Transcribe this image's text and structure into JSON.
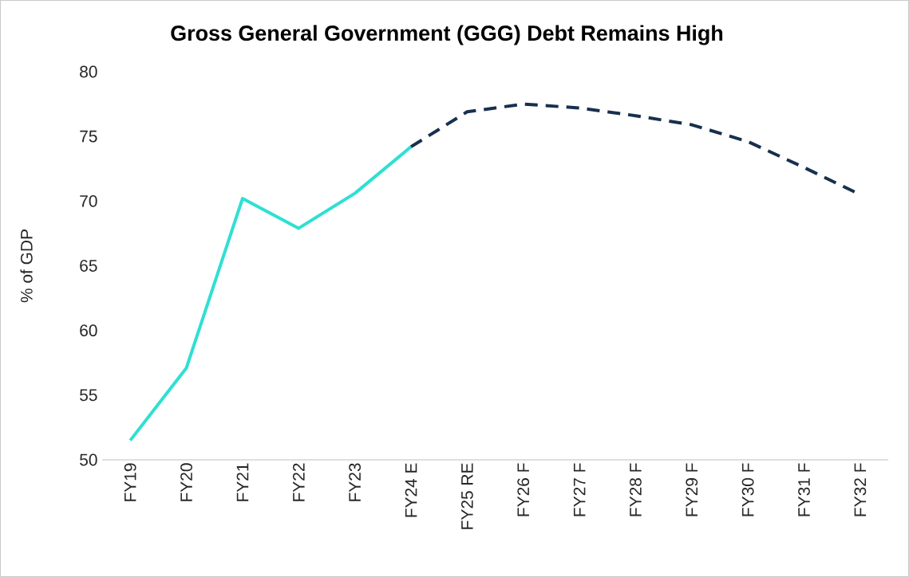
{
  "chart_data": {
    "type": "line",
    "title": "Gross General Government (GGG) Debt Remains High",
    "ylabel": "% of GDP",
    "categories": [
      "FY19",
      "FY20",
      "FY21",
      "FY22",
      "FY23",
      "FY24 E",
      "FY25 RE",
      "FY26 F",
      "FY27 F",
      "FY28 F",
      "FY29 F",
      "FY30 F",
      "FY31 F",
      "FY32 F"
    ],
    "series": [
      {
        "color": "#2ee0d3",
        "line_style": "solid",
        "values": [
          51.5,
          57.1,
          70.2,
          67.9,
          70.6,
          74.2,
          null,
          null,
          null,
          null,
          null,
          null,
          null,
          null
        ]
      },
      {
        "color": "#17304d",
        "line_style": "dashed",
        "values": [
          null,
          null,
          null,
          null,
          null,
          74.2,
          76.9,
          77.5,
          77.2,
          76.6,
          75.9,
          74.6,
          72.6,
          70.5
        ]
      }
    ],
    "ylim": [
      50,
      80
    ],
    "yticks": [
      50,
      55,
      60,
      65,
      70,
      75,
      80
    ],
    "grid": false,
    "marker": "none"
  }
}
